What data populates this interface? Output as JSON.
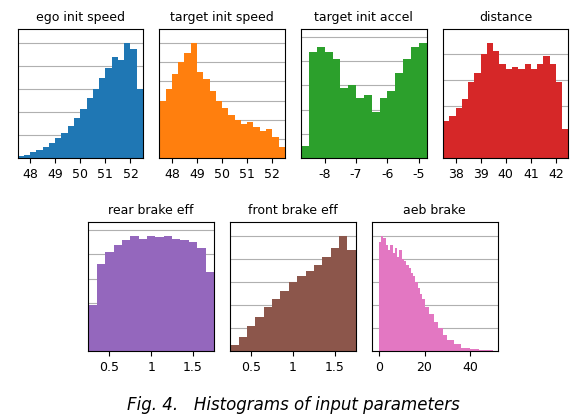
{
  "title": "Fig. 4.   Histograms of input parameters",
  "chart_data": [
    {
      "type": "histogram",
      "title": "ego init speed",
      "bins": [
        47.5,
        47.75,
        48.0,
        48.25,
        48.5,
        48.75,
        49.0,
        49.25,
        49.5,
        49.75,
        50.0,
        50.25,
        50.5,
        50.75,
        51.0,
        51.25,
        51.5,
        51.75,
        52.0,
        52.25,
        52.5
      ],
      "values": [
        2,
        3,
        5,
        7,
        10,
        13,
        17,
        22,
        28,
        35,
        43,
        52,
        60,
        70,
        78,
        88,
        85,
        100,
        95,
        60
      ],
      "xlim": [
        47.5,
        52.5
      ],
      "xticks": [
        48,
        49,
        50,
        51,
        52
      ],
      "ylim": [
        0,
        112
      ],
      "yticks": [
        0,
        20,
        40,
        60,
        80,
        100
      ],
      "grid": true,
      "tick_labels": "x"
    },
    {
      "type": "histogram",
      "title": "target init speed",
      "bins": [
        47.5,
        47.75,
        48.0,
        48.25,
        48.5,
        48.75,
        49.0,
        49.25,
        49.5,
        49.75,
        50.0,
        50.25,
        50.5,
        50.75,
        51.0,
        51.25,
        51.5,
        51.75,
        52.0,
        52.25,
        52.5
      ],
      "values": [
        60,
        72,
        88,
        100,
        110,
        120,
        90,
        82,
        70,
        60,
        52,
        45,
        40,
        35,
        38,
        32,
        28,
        30,
        22,
        12
      ],
      "xlim": [
        47.5,
        52.5
      ],
      "xticks": [
        48,
        49,
        50,
        51,
        52
      ],
      "ylim": [
        0,
        134.4
      ],
      "yticks": [
        0,
        20,
        40,
        60,
        80,
        100,
        120
      ],
      "grid": true,
      "tick_labels": "x"
    },
    {
      "type": "histogram",
      "title": "target init accel",
      "bins": [
        -8.75,
        -8.5,
        -8.25,
        -8.0,
        -7.75,
        -7.5,
        -7.25,
        -7.0,
        -6.75,
        -6.5,
        -6.25,
        -6.0,
        -5.75,
        -5.5,
        -5.25,
        -5.0,
        -4.75
      ],
      "values": [
        10,
        88,
        92,
        88,
        82,
        58,
        60,
        50,
        52,
        38,
        50,
        55,
        70,
        82,
        92,
        95
      ],
      "xlim": [
        -8.75,
        -4.75
      ],
      "xticks": [
        -8,
        -7,
        -6,
        -5
      ],
      "ylim": [
        0,
        106.4
      ],
      "yticks": [
        0,
        20,
        40,
        60,
        80,
        100
      ],
      "grid": true,
      "tick_labels": "x"
    },
    {
      "type": "histogram",
      "title": "distance",
      "bins": [
        37.5,
        37.75,
        38.0,
        38.25,
        38.5,
        38.75,
        39.0,
        39.25,
        39.5,
        39.75,
        40.0,
        40.25,
        40.5,
        40.75,
        41.0,
        41.25,
        41.5,
        41.75,
        42.0,
        42.25,
        42.5
      ],
      "values": [
        28,
        32,
        38,
        45,
        58,
        65,
        80,
        88,
        82,
        72,
        68,
        70,
        68,
        72,
        68,
        72,
        78,
        72,
        58,
        22
      ],
      "xlim": [
        37.5,
        42.5
      ],
      "xticks": [
        38,
        39,
        40,
        41,
        42
      ],
      "ylim": [
        0,
        98.56
      ],
      "yticks": [
        0,
        20,
        40,
        60,
        80
      ],
      "grid": true,
      "tick_labels": "x"
    },
    {
      "type": "histogram",
      "title": "rear brake eff",
      "bins": [
        0.25,
        0.35,
        0.45,
        0.55,
        0.65,
        0.75,
        0.85,
        0.95,
        1.05,
        1.15,
        1.25,
        1.35,
        1.45,
        1.55,
        1.65,
        1.75
      ],
      "values": [
        38,
        72,
        82,
        88,
        92,
        95,
        93,
        95,
        94,
        95,
        93,
        92,
        90,
        85,
        65
      ],
      "xlim": [
        0.25,
        1.75
      ],
      "xticks": [
        0.5,
        1,
        1.5
      ],
      "ylim": [
        0,
        106.4
      ],
      "yticks": [
        0,
        20,
        40,
        60,
        80,
        100
      ],
      "grid": true,
      "tick_labels": "x"
    },
    {
      "type": "histogram",
      "title": "front brake eff",
      "bins": [
        0.25,
        0.35,
        0.45,
        0.55,
        0.65,
        0.75,
        0.85,
        0.95,
        1.05,
        1.15,
        1.25,
        1.35,
        1.45,
        1.55,
        1.65,
        1.75
      ],
      "values": [
        5,
        12,
        22,
        30,
        38,
        45,
        52,
        60,
        65,
        70,
        75,
        82,
        90,
        100,
        88
      ],
      "xlim": [
        0.25,
        1.75
      ],
      "xticks": [
        0.5,
        1,
        1.5
      ],
      "ylim": [
        0,
        112
      ],
      "yticks": [
        0,
        20,
        40,
        60,
        80,
        100
      ],
      "grid": true,
      "tick_labels": "x"
    },
    {
      "type": "histogram",
      "title": "aeb brake",
      "bins": [
        0,
        1,
        2,
        3,
        4,
        5,
        6,
        7,
        8,
        9,
        10,
        11,
        12,
        13,
        14,
        15,
        16,
        17,
        18,
        19,
        20,
        22,
        24,
        26,
        28,
        30,
        33,
        36,
        40,
        44,
        50
      ],
      "values": [
        95,
        100,
        98,
        92,
        88,
        92,
        85,
        90,
        82,
        88,
        80,
        78,
        75,
        72,
        68,
        65,
        60,
        55,
        50,
        45,
        38,
        32,
        25,
        20,
        14,
        10,
        6,
        3,
        2,
        1
      ],
      "xlim": [
        -3,
        52
      ],
      "xticks": [
        0,
        20,
        40
      ],
      "ylim": [
        0,
        112
      ],
      "yticks": [
        0,
        20,
        40,
        60,
        80,
        100
      ],
      "grid": true,
      "tick_labels": "x"
    }
  ]
}
